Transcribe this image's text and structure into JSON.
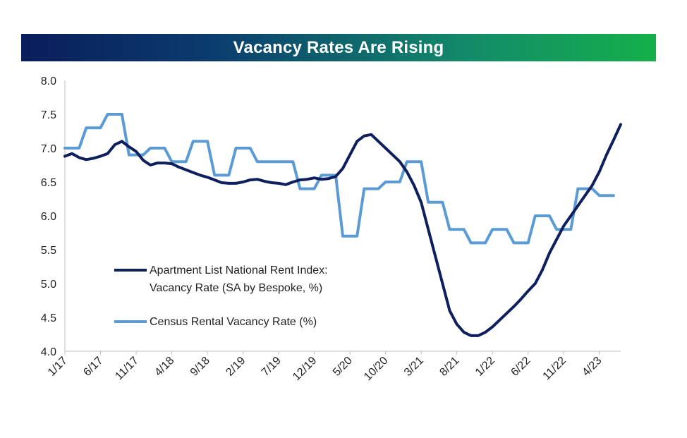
{
  "chart_data": {
    "type": "line",
    "title": "Vacancy Rates Are Rising",
    "xlabel": "",
    "ylabel": "",
    "ylim": [
      4.0,
      8.0
    ],
    "yticks": [
      "8.0",
      "7.5",
      "7.0",
      "6.5",
      "6.0",
      "5.5",
      "5.0",
      "4.5",
      "4.0"
    ],
    "x_tick_labels": [
      "1/17",
      "6/17",
      "11/17",
      "4/18",
      "9/18",
      "2/19",
      "7/19",
      "12/19",
      "5/20",
      "10/20",
      "3/21",
      "8/21",
      "1/22",
      "6/22",
      "11/22",
      "4/23"
    ],
    "x_tick_months": [
      0,
      5,
      10,
      15,
      20,
      25,
      30,
      35,
      40,
      45,
      50,
      55,
      60,
      65,
      70,
      75
    ],
    "x_max_month": 78,
    "grid": false,
    "legend_position": "lower-left",
    "colors": {
      "apartment_list": "#0d1f5c",
      "census": "#5b9bd5"
    },
    "series": [
      {
        "name": "Apartment List National Rent Index: Vacancy Rate (SA by Bespoke, %)",
        "legend_lines": [
          "Apartment List National Rent Index:",
          "Vacancy Rate (SA by Bespoke, %)"
        ],
        "color_key": "apartment_list",
        "points": [
          [
            0,
            6.88
          ],
          [
            1,
            6.92
          ],
          [
            2,
            6.86
          ],
          [
            3,
            6.83
          ],
          [
            4,
            6.85
          ],
          [
            5,
            6.88
          ],
          [
            6,
            6.92
          ],
          [
            7,
            7.05
          ],
          [
            8,
            7.1
          ],
          [
            9,
            7.02
          ],
          [
            10,
            6.95
          ],
          [
            11,
            6.82
          ],
          [
            12,
            6.75
          ],
          [
            13,
            6.78
          ],
          [
            14,
            6.78
          ],
          [
            15,
            6.77
          ],
          [
            16,
            6.72
          ],
          [
            17,
            6.68
          ],
          [
            18,
            6.64
          ],
          [
            19,
            6.6
          ],
          [
            20,
            6.57
          ],
          [
            21,
            6.53
          ],
          [
            22,
            6.49
          ],
          [
            23,
            6.48
          ],
          [
            24,
            6.48
          ],
          [
            25,
            6.5
          ],
          [
            26,
            6.53
          ],
          [
            27,
            6.54
          ],
          [
            28,
            6.51
          ],
          [
            29,
            6.49
          ],
          [
            30,
            6.48
          ],
          [
            31,
            6.46
          ],
          [
            32,
            6.5
          ],
          [
            33,
            6.53
          ],
          [
            34,
            6.54
          ],
          [
            35,
            6.56
          ],
          [
            36,
            6.54
          ],
          [
            37,
            6.55
          ],
          [
            38,
            6.58
          ],
          [
            39,
            6.7
          ],
          [
            40,
            6.9
          ],
          [
            41,
            7.1
          ],
          [
            42,
            7.18
          ],
          [
            43,
            7.2
          ],
          [
            44,
            7.1
          ],
          [
            45,
            7.0
          ],
          [
            46,
            6.9
          ],
          [
            47,
            6.8
          ],
          [
            48,
            6.65
          ],
          [
            49,
            6.45
          ],
          [
            50,
            6.2
          ],
          [
            51,
            5.8
          ],
          [
            52,
            5.4
          ],
          [
            53,
            5.0
          ],
          [
            54,
            4.6
          ],
          [
            55,
            4.4
          ],
          [
            56,
            4.28
          ],
          [
            57,
            4.23
          ],
          [
            58,
            4.23
          ],
          [
            59,
            4.28
          ],
          [
            60,
            4.36
          ],
          [
            61,
            4.46
          ],
          [
            62,
            4.56
          ],
          [
            63,
            4.66
          ],
          [
            64,
            4.77
          ],
          [
            65,
            4.89
          ],
          [
            66,
            5.0
          ],
          [
            67,
            5.2
          ],
          [
            68,
            5.45
          ],
          [
            69,
            5.65
          ],
          [
            70,
            5.85
          ],
          [
            71,
            6.0
          ],
          [
            72,
            6.15
          ],
          [
            73,
            6.3
          ],
          [
            74,
            6.45
          ],
          [
            75,
            6.65
          ],
          [
            76,
            6.9
          ],
          [
            77,
            7.12
          ],
          [
            78,
            7.35
          ]
        ]
      },
      {
        "name": "Census Rental Vacancy Rate (%)",
        "legend_lines": [
          "Census Rental Vacancy Rate (%)"
        ],
        "color_key": "census",
        "points": [
          [
            0,
            7.0
          ],
          [
            2,
            7.0
          ],
          [
            3,
            7.3
          ],
          [
            5,
            7.3
          ],
          [
            6,
            7.5
          ],
          [
            8,
            7.5
          ],
          [
            9,
            6.9
          ],
          [
            11,
            6.9
          ],
          [
            12,
            7.0
          ],
          [
            14,
            7.0
          ],
          [
            15,
            6.8
          ],
          [
            17,
            6.8
          ],
          [
            18,
            7.1
          ],
          [
            20,
            7.1
          ],
          [
            21,
            6.6
          ],
          [
            23,
            6.6
          ],
          [
            24,
            7.0
          ],
          [
            26,
            7.0
          ],
          [
            27,
            6.8
          ],
          [
            32,
            6.8
          ],
          [
            33,
            6.4
          ],
          [
            35,
            6.4
          ],
          [
            36,
            6.6
          ],
          [
            38,
            6.6
          ],
          [
            39,
            5.7
          ],
          [
            41,
            5.7
          ],
          [
            42,
            6.4
          ],
          [
            44,
            6.4
          ],
          [
            45,
            6.5
          ],
          [
            47,
            6.5
          ],
          [
            48,
            6.8
          ],
          [
            50,
            6.8
          ],
          [
            51,
            6.2
          ],
          [
            53,
            6.2
          ],
          [
            54,
            5.8
          ],
          [
            56,
            5.8
          ],
          [
            57,
            5.6
          ],
          [
            59,
            5.6
          ],
          [
            60,
            5.8
          ],
          [
            62,
            5.8
          ],
          [
            63,
            5.6
          ],
          [
            65,
            5.6
          ],
          [
            66,
            6.0
          ],
          [
            68,
            6.0
          ],
          [
            69,
            5.8
          ],
          [
            71,
            5.8
          ],
          [
            72,
            6.4
          ],
          [
            74,
            6.4
          ],
          [
            75,
            6.3
          ],
          [
            77,
            6.3
          ]
        ]
      }
    ]
  }
}
